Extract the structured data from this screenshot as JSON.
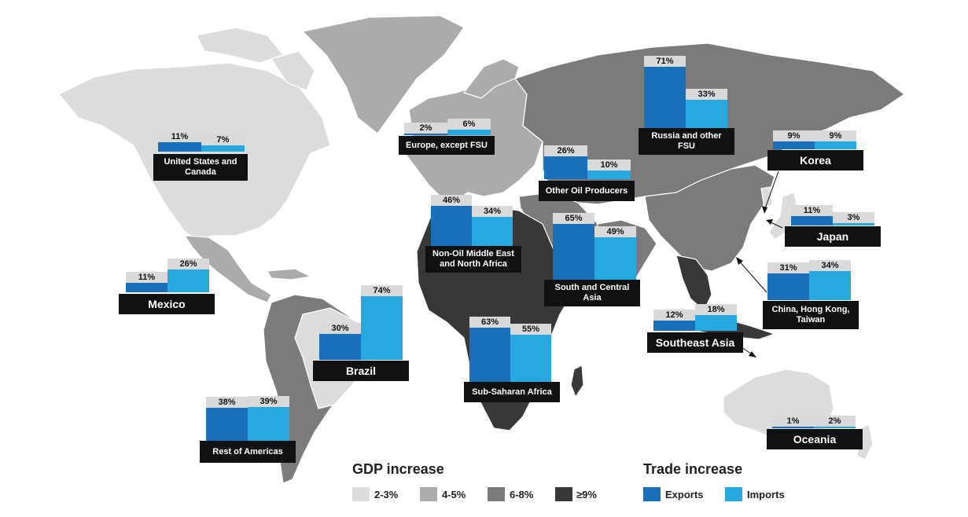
{
  "colors": {
    "gdp_2_3": "#dcdcdc",
    "gdp_4_5": "#ababab",
    "gdp_6_8": "#7b7b7b",
    "gdp_9_plus": "#383838",
    "exports": "#1a6fba",
    "imports": "#27a8e0"
  },
  "legend": {
    "gdp_title": "GDP increase",
    "gdp_items": [
      "2-3%",
      "4-5%",
      "6-8%",
      "≥9%"
    ],
    "trade_title": "Trade increase",
    "trade_items": [
      "Exports",
      "Imports"
    ]
  },
  "regions": [
    {
      "name": "United States and Canada",
      "exports": 11,
      "imports": 7,
      "exports_label": "11%",
      "imports_label": "7%"
    },
    {
      "name": "Mexico",
      "exports": 11,
      "imports": 26,
      "exports_label": "11%",
      "imports_label": "26%"
    },
    {
      "name": "Brazil",
      "exports": 30,
      "imports": 74,
      "exports_label": "30%",
      "imports_label": "74%"
    },
    {
      "name": "Rest of Americas",
      "exports": 38,
      "imports": 39,
      "exports_label": "38%",
      "imports_label": "39%"
    },
    {
      "name": "Europe, except FSU",
      "exports": 2,
      "imports": 6,
      "exports_label": "2%",
      "imports_label": "6%"
    },
    {
      "name": "Non-Oil Middle East and North Africa",
      "exports": 46,
      "imports": 34,
      "exports_label": "46%",
      "imports_label": "34%"
    },
    {
      "name": "Sub-Saharan Africa",
      "exports": 63,
      "imports": 55,
      "exports_label": "63%",
      "imports_label": "55%"
    },
    {
      "name": "Other Oil Producers",
      "exports": 26,
      "imports": 10,
      "exports_label": "26%",
      "imports_label": "10%"
    },
    {
      "name": "Russia and other FSU",
      "exports": 71,
      "imports": 33,
      "exports_label": "71%",
      "imports_label": "33%"
    },
    {
      "name": "South and Central Asia",
      "exports": 65,
      "imports": 49,
      "exports_label": "65%",
      "imports_label": "49%"
    },
    {
      "name": "Korea",
      "exports": 9,
      "imports": 9,
      "exports_label": "9%",
      "imports_label": "9%"
    },
    {
      "name": "Japan",
      "exports": 11,
      "imports": 3,
      "exports_label": "11%",
      "imports_label": "3%"
    },
    {
      "name": "China, Hong Kong, Taiwan",
      "exports": 31,
      "imports": 34,
      "exports_label": "31%",
      "imports_label": "34%"
    },
    {
      "name": "Southeast Asia",
      "exports": 12,
      "imports": 18,
      "exports_label": "12%",
      "imports_label": "18%"
    },
    {
      "name": "Oceania",
      "exports": 1,
      "imports": 2,
      "exports_label": "1%",
      "imports_label": "2%"
    }
  ]
}
